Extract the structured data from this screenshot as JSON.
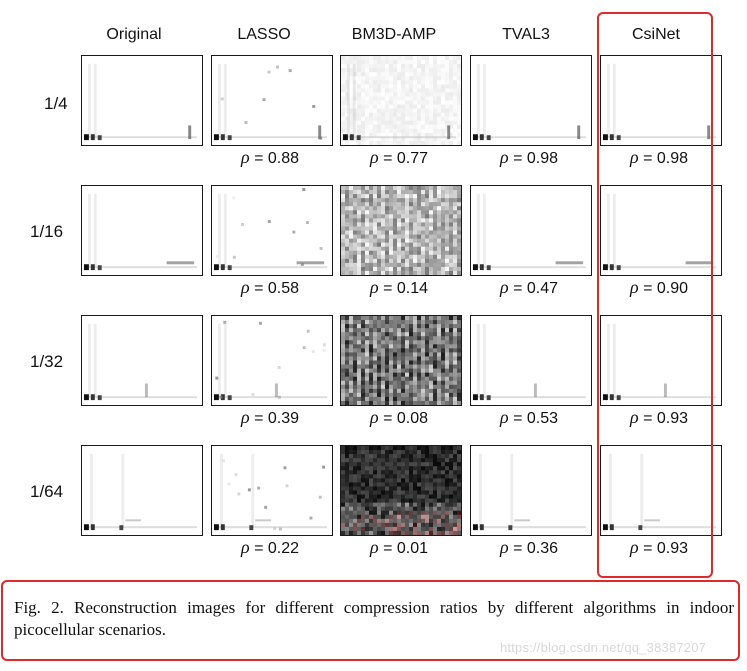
{
  "columns": [
    "Original",
    "LASSO",
    "BM3D-AMP",
    "TVAL3",
    "CsiNet"
  ],
  "rows": [
    {
      "ratio": "1/4",
      "rho": [
        "",
        "0.88",
        "0.77",
        "0.98",
        "0.98"
      ]
    },
    {
      "ratio": "1/16",
      "rho": [
        "",
        "0.58",
        "0.14",
        "0.47",
        "0.90"
      ]
    },
    {
      "ratio": "1/32",
      "rho": [
        "",
        "0.39",
        "0.08",
        "0.53",
        "0.93"
      ]
    },
    {
      "ratio": "1/64",
      "rho": [
        "",
        "0.22",
        "0.01",
        "0.36",
        "0.93"
      ]
    }
  ],
  "rho_symbol": "ρ",
  "rho_equals": " = ",
  "caption": "Fig. 2.   Reconstruction images for different compression ratios by different algorithms in indoor picocellular scenarios.",
  "watermark": "https://blog.csdn.net/qq_38387207",
  "colors": {
    "highlight": "#e02a2a",
    "border": "#1a1a1a"
  }
}
